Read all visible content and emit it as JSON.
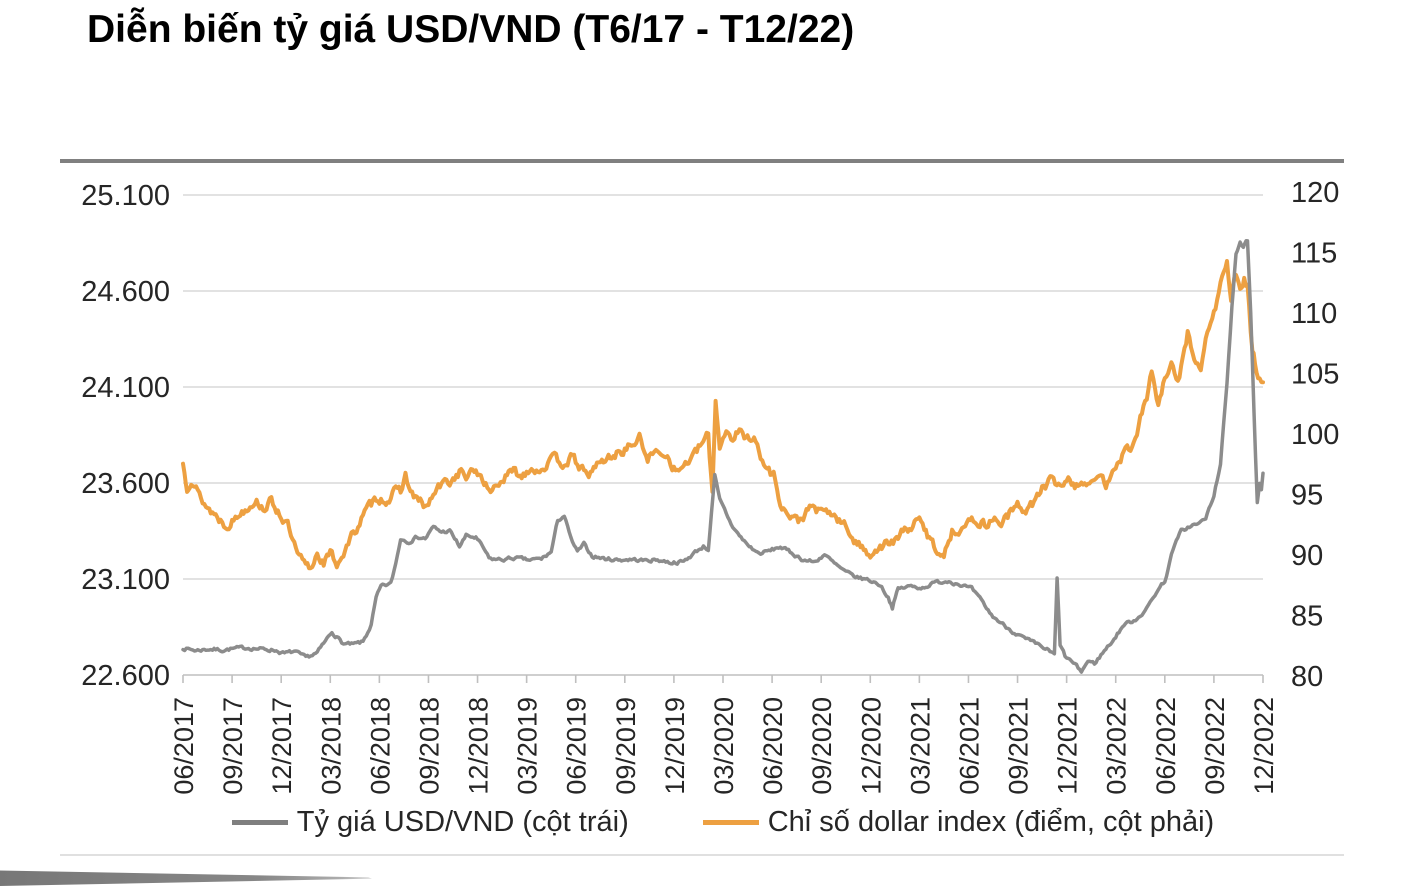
{
  "title": "Diễn biến tỷ giá USD/VND (T6/17 - T12/22)",
  "colors": {
    "usdvnd_line": "#8C8C8C",
    "dollar_index_line": "#EDA041",
    "gridline": "#D9D9D9",
    "axis_line": "#BFBFBF",
    "axis_text": "#262626",
    "title_text": "#000000",
    "top_rule": "#808080",
    "corner_wedge": "#7D7D7D"
  },
  "chart_data": {
    "type": "line",
    "title": "Diễn biến tỷ giá USD/VND (T6/17 - T12/22)",
    "xlabel": "",
    "ylabel": "",
    "grid": "horizontal",
    "legend_position": "bottom",
    "x_axis": {
      "unit": "months since 06/2017",
      "range": [
        0,
        66
      ],
      "tick_interval_months": 3,
      "tick_labels": [
        "06/2017",
        "09/2017",
        "12/2017",
        "03/2018",
        "06/2018",
        "09/2018",
        "12/2018",
        "03/2019",
        "06/2019",
        "09/2019",
        "12/2019",
        "03/2020",
        "06/2020",
        "09/2020",
        "12/2020",
        "03/2021",
        "06/2021",
        "09/2021",
        "12/2021",
        "03/2022",
        "06/2022",
        "09/2022",
        "12/2022"
      ]
    },
    "left_axis": {
      "range": [
        22600,
        25100
      ],
      "ticks": [
        {
          "label": "25.100",
          "value": 25100
        },
        {
          "label": "24.600",
          "value": 24600
        },
        {
          "label": "24.100",
          "value": 24100
        },
        {
          "label": "23.600",
          "value": 23600
        },
        {
          "label": "23.100",
          "value": 23100
        },
        {
          "label": "22.600",
          "value": 22600
        }
      ]
    },
    "right_axis": {
      "range": [
        80,
        120
      ],
      "ticks": [
        "120",
        "115",
        "110",
        "105",
        "100",
        "95",
        "90",
        "85",
        "80"
      ]
    },
    "series": [
      {
        "name": "Tỷ giá USD/VND (cột trái)",
        "axis": "left",
        "color": "#8C8C8C",
        "legend_color": "#7F7F7F",
        "stroke_width": 3.5,
        "noise_amplitude": 16,
        "points": [
          [
            0,
            22740
          ],
          [
            0.8,
            22728
          ],
          [
            1.6,
            22735
          ],
          [
            2.4,
            22730
          ],
          [
            3.2,
            22738
          ],
          [
            4,
            22742
          ],
          [
            4.8,
            22735
          ],
          [
            5.6,
            22730
          ],
          [
            6.2,
            22712
          ],
          [
            6.8,
            22722
          ],
          [
            7.5,
            22690
          ],
          [
            8.2,
            22715
          ],
          [
            8.7,
            22775
          ],
          [
            9.1,
            22825
          ],
          [
            9.5,
            22790
          ],
          [
            9.8,
            22762
          ],
          [
            10.4,
            22758
          ],
          [
            11,
            22772
          ],
          [
            11.5,
            22860
          ],
          [
            11.8,
            23000
          ],
          [
            12.1,
            23060
          ],
          [
            12.7,
            23075
          ],
          [
            13,
            23180
          ],
          [
            13.3,
            23310
          ],
          [
            13.8,
            23295
          ],
          [
            14.3,
            23320
          ],
          [
            14.8,
            23310
          ],
          [
            15.3,
            23370
          ],
          [
            15.8,
            23345
          ],
          [
            16.3,
            23350
          ],
          [
            16.9,
            23270
          ],
          [
            17.3,
            23325
          ],
          [
            17.9,
            23315
          ],
          [
            18.4,
            23255
          ],
          [
            18.7,
            23205
          ],
          [
            19.5,
            23200
          ],
          [
            20.3,
            23210
          ],
          [
            21.1,
            23198
          ],
          [
            21.9,
            23205
          ],
          [
            22.5,
            23240
          ],
          [
            22.9,
            23405
          ],
          [
            23.3,
            23430
          ],
          [
            23.7,
            23310
          ],
          [
            24.1,
            23240
          ],
          [
            24.5,
            23280
          ],
          [
            25,
            23220
          ],
          [
            25.8,
            23205
          ],
          [
            26.6,
            23200
          ],
          [
            27.4,
            23202
          ],
          [
            28.2,
            23196
          ],
          [
            29,
            23200
          ],
          [
            29.8,
            23186
          ],
          [
            30.6,
            23190
          ],
          [
            31.3,
            23240
          ],
          [
            31.8,
            23270
          ],
          [
            32.1,
            23255
          ],
          [
            32.5,
            23635
          ],
          [
            32.8,
            23510
          ],
          [
            33.1,
            23460
          ],
          [
            33.5,
            23385
          ],
          [
            34,
            23325
          ],
          [
            34.6,
            23270
          ],
          [
            35.2,
            23232
          ],
          [
            35.9,
            23248
          ],
          [
            36.5,
            23268
          ],
          [
            37.2,
            23235
          ],
          [
            37.9,
            23200
          ],
          [
            38.6,
            23188
          ],
          [
            39.2,
            23228
          ],
          [
            39.8,
            23180
          ],
          [
            40.5,
            23135
          ],
          [
            41.2,
            23108
          ],
          [
            41.9,
            23095
          ],
          [
            42.6,
            23070
          ],
          [
            43.1,
            23005
          ],
          [
            43.35,
            22952
          ],
          [
            43.7,
            23048
          ],
          [
            44.4,
            23062
          ],
          [
            45.2,
            23055
          ],
          [
            46,
            23082
          ],
          [
            46.8,
            23090
          ],
          [
            47.5,
            23072
          ],
          [
            48.2,
            23048
          ],
          [
            48.8,
            22985
          ],
          [
            49.4,
            22912
          ],
          [
            50,
            22870
          ],
          [
            50.7,
            22828
          ],
          [
            51.4,
            22790
          ],
          [
            52.1,
            22762
          ],
          [
            52.8,
            22732
          ],
          [
            53.25,
            22705
          ],
          [
            53.42,
            23100
          ],
          [
            53.6,
            22758
          ],
          [
            53.9,
            22698
          ],
          [
            54.4,
            22662
          ],
          [
            54.9,
            22618
          ],
          [
            55.3,
            22672
          ],
          [
            55.7,
            22660
          ],
          [
            56.2,
            22715
          ],
          [
            56.9,
            22788
          ],
          [
            57.5,
            22862
          ],
          [
            58.2,
            22888
          ],
          [
            58.9,
            22945
          ],
          [
            59.5,
            23035
          ],
          [
            60,
            23090
          ],
          [
            60.5,
            23255
          ],
          [
            61,
            23350
          ],
          [
            61.6,
            23378
          ],
          [
            62.1,
            23388
          ],
          [
            62.5,
            23418
          ],
          [
            63,
            23528
          ],
          [
            63.4,
            23705
          ],
          [
            63.8,
            24110
          ],
          [
            64.1,
            24520
          ],
          [
            64.35,
            24800
          ],
          [
            64.6,
            24858
          ],
          [
            64.8,
            24828
          ],
          [
            65.05,
            24862
          ],
          [
            65.25,
            24480
          ],
          [
            65.45,
            23960
          ],
          [
            65.65,
            23492
          ],
          [
            65.8,
            23588
          ],
          [
            65.9,
            23555
          ],
          [
            66,
            23648
          ]
        ]
      },
      {
        "name": "Chỉ số dollar index (điểm, cột phải)",
        "axis": "right",
        "color": "#EDA041",
        "legend_color": "#EDA041",
        "stroke_width": 4,
        "noise_amplitude": 0.7,
        "points": [
          [
            0,
            97.5
          ],
          [
            0.25,
            95.7
          ],
          [
            0.5,
            96.4
          ],
          [
            1,
            94.9
          ],
          [
            1.5,
            93.9
          ],
          [
            2,
            93.3
          ],
          [
            2.6,
            92.5
          ],
          [
            3.1,
            92.9
          ],
          [
            3.6,
            93.6
          ],
          [
            4.1,
            94.2
          ],
          [
            4.4,
            94.6
          ],
          [
            4.9,
            93.9
          ],
          [
            5.4,
            94.4
          ],
          [
            5.9,
            93.5
          ],
          [
            6.4,
            92.4
          ],
          [
            7,
            89.9
          ],
          [
            7.5,
            89.1
          ],
          [
            7.8,
            88.8
          ],
          [
            8.2,
            90.2
          ],
          [
            8.6,
            89.4
          ],
          [
            9,
            90.1
          ],
          [
            9.4,
            89.3
          ],
          [
            9.9,
            90.4
          ],
          [
            10.4,
            91.7
          ],
          [
            10.9,
            93
          ],
          [
            11.4,
            94
          ],
          [
            11.9,
            94.8
          ],
          [
            12.4,
            94.5
          ],
          [
            12.9,
            95.1
          ],
          [
            13.3,
            95.3
          ],
          [
            13.6,
            96.6
          ],
          [
            13.9,
            95.2
          ],
          [
            14.4,
            94.4
          ],
          [
            14.9,
            93.9
          ],
          [
            15.4,
            95.2
          ],
          [
            15.9,
            95.9
          ],
          [
            16.4,
            96.1
          ],
          [
            16.9,
            96.9
          ],
          [
            17.4,
            96.4
          ],
          [
            17.9,
            97
          ],
          [
            18.4,
            96.2
          ],
          [
            18.7,
            95.1
          ],
          [
            19.2,
            95.9
          ],
          [
            19.7,
            96.4
          ],
          [
            20.2,
            96.9
          ],
          [
            20.7,
            96.5
          ],
          [
            21.2,
            97.3
          ],
          [
            21.7,
            97
          ],
          [
            22.2,
            97.5
          ],
          [
            22.7,
            97.9
          ],
          [
            23.2,
            97.6
          ],
          [
            23.7,
            98
          ],
          [
            24.2,
            97.4
          ],
          [
            24.7,
            96.4
          ],
          [
            25.2,
            97.4
          ],
          [
            25.7,
            97.7
          ],
          [
            26.2,
            98.2
          ],
          [
            26.7,
            98.5
          ],
          [
            27.2,
            98.9
          ],
          [
            27.9,
            99.6
          ],
          [
            28.4,
            98.1
          ],
          [
            28.9,
            98.4
          ],
          [
            29.4,
            98.6
          ],
          [
            29.9,
            97.5
          ],
          [
            30.2,
            96.8
          ],
          [
            30.7,
            97.6
          ],
          [
            31.2,
            98.1
          ],
          [
            31.8,
            99.4
          ],
          [
            32.1,
            99.8
          ],
          [
            32.35,
            95.2
          ],
          [
            32.55,
            102.8
          ],
          [
            32.8,
            99.1
          ],
          [
            33.2,
            100.3
          ],
          [
            33.6,
            99.7
          ],
          [
            34,
            100.2
          ],
          [
            34.4,
            99.6
          ],
          [
            34.9,
            100
          ],
          [
            35.3,
            97.9
          ],
          [
            35.7,
            97.1
          ],
          [
            36.1,
            96.6
          ],
          [
            36.6,
            94
          ],
          [
            37.1,
            93.1
          ],
          [
            37.6,
            92.8
          ],
          [
            38.1,
            93.5
          ],
          [
            38.5,
            94
          ],
          [
            39,
            93.4
          ],
          [
            39.5,
            93.6
          ],
          [
            40,
            92.9
          ],
          [
            40.5,
            92.3
          ],
          [
            41,
            91.3
          ],
          [
            41.5,
            90.5
          ],
          [
            42,
            90.2
          ],
          [
            42.5,
            90.6
          ],
          [
            43,
            90.9
          ],
          [
            43.5,
            91.1
          ],
          [
            44,
            91.9
          ],
          [
            44.5,
            92.4
          ],
          [
            45,
            92.8
          ],
          [
            45.5,
            91.7
          ],
          [
            46,
            90.5
          ],
          [
            46.5,
            90.1
          ],
          [
            47,
            91.9
          ],
          [
            47.5,
            92.3
          ],
          [
            48,
            92.6
          ],
          [
            48.5,
            92.9
          ],
          [
            49,
            92.5
          ],
          [
            49.5,
            93
          ],
          [
            50,
            92.7
          ],
          [
            50.5,
            93.4
          ],
          [
            51,
            94
          ],
          [
            51.5,
            93.8
          ],
          [
            52,
            94.3
          ],
          [
            52.5,
            95.5
          ],
          [
            53,
            96.1
          ],
          [
            53.5,
            95.8
          ],
          [
            54,
            96.3
          ],
          [
            54.5,
            95.8
          ],
          [
            55,
            96.1
          ],
          [
            55.5,
            95.7
          ],
          [
            56,
            96.6
          ],
          [
            56.4,
            95.9
          ],
          [
            56.9,
            97.4
          ],
          [
            57.4,
            98.3
          ],
          [
            57.9,
            98.9
          ],
          [
            58.4,
            100.7
          ],
          [
            58.9,
            103.1
          ],
          [
            59.2,
            105.2
          ],
          [
            59.6,
            102.2
          ],
          [
            60,
            104.5
          ],
          [
            60.4,
            105.6
          ],
          [
            60.8,
            104.1
          ],
          [
            61.4,
            108.4
          ],
          [
            61.9,
            105.9
          ],
          [
            62.2,
            105.1
          ],
          [
            62.6,
            108.5
          ],
          [
            63.1,
            110.3
          ],
          [
            63.4,
            112.3
          ],
          [
            63.8,
            114.4
          ],
          [
            64.05,
            110.9
          ],
          [
            64.35,
            113.2
          ],
          [
            64.6,
            111.5
          ],
          [
            64.85,
            112.9
          ],
          [
            65.05,
            112.2
          ],
          [
            65.35,
            106.8
          ],
          [
            65.6,
            105.3
          ],
          [
            65.8,
            104.6
          ],
          [
            66,
            104
          ]
        ]
      }
    ]
  }
}
